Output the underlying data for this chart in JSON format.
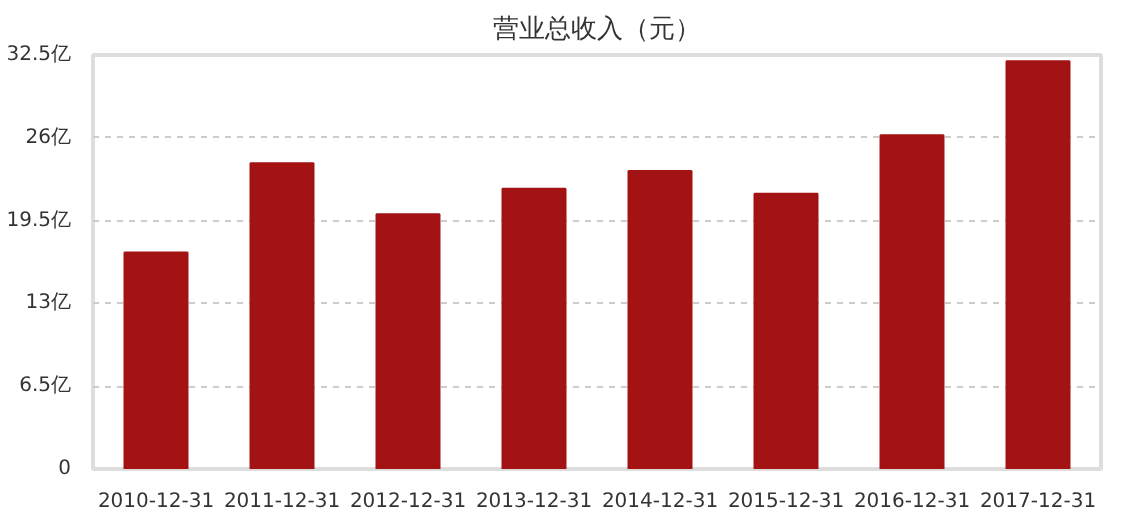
{
  "chart_data": {
    "type": "bar",
    "title": "营业总收入（元）",
    "categories": [
      "2010-12-31",
      "2011-12-31",
      "2012-12-31",
      "2013-12-31",
      "2014-12-31",
      "2015-12-31",
      "2016-12-31",
      "2017-12-31"
    ],
    "values": [
      17.0,
      24.0,
      20.0,
      22.0,
      23.4,
      21.6,
      26.2,
      32.0
    ],
    "color": "#a31313",
    "ylim": [
      0,
      32.5
    ],
    "yticks": [
      0,
      {
        "value": 6.5,
        "label": "6.5亿"
      },
      {
        "value": 13,
        "label": "13亿"
      },
      {
        "value": 19.5,
        "label": "19.5亿"
      },
      {
        "value": 26,
        "label": "26亿"
      },
      {
        "value": 32.5,
        "label": "32.5亿"
      }
    ],
    "grid": "y"
  }
}
